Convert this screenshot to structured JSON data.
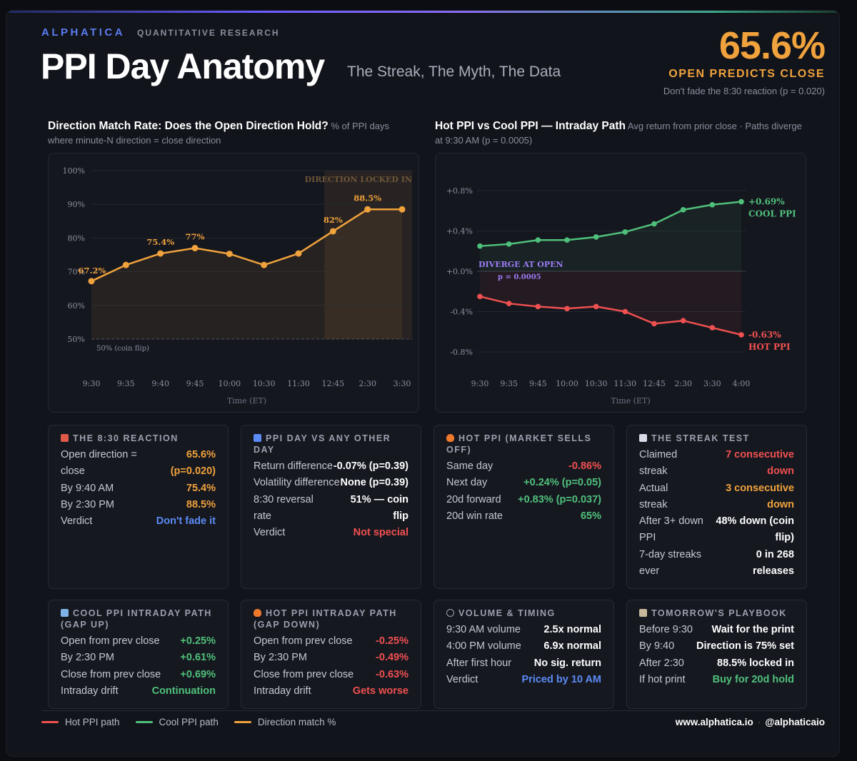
{
  "header": {
    "brand": "ALPHATICA",
    "brand_sub": "QUANTITATIVE RESEARCH",
    "title": "PPI Day Anatomy",
    "subtitle": "The Streak, The Myth, The Data",
    "big_stat": "65.6%",
    "big_label": "OPEN PREDICTS CLOSE",
    "big_note": "Don't fade the 8:30 reaction (p = 0.020)"
  },
  "chart_data": [
    {
      "type": "line",
      "title": "Direction Match Rate: Does the Open Direction Hold?",
      "subtitle": "% of PPI days where minute-N direction = close direction",
      "xlabel": "Time (ET)",
      "ylabel": "",
      "categories": [
        "9:30",
        "9:35",
        "9:40",
        "9:45",
        "10:00",
        "10:30",
        "11:30",
        "12:45",
        "2:30",
        "3:30"
      ],
      "series": [
        {
          "name": "Direction match %",
          "values": [
            67.2,
            72.0,
            75.4,
            77.0,
            75.3,
            72.0,
            75.4,
            82.0,
            88.5,
            88.5
          ]
        }
      ],
      "data_labels": [
        {
          "index": 0,
          "text": "67.2%"
        },
        {
          "index": 2,
          "text": "75.4%"
        },
        {
          "index": 3,
          "text": "77%"
        },
        {
          "index": 7,
          "text": "82%"
        },
        {
          "index": 8,
          "text": "88.5%"
        }
      ],
      "ylim": [
        50,
        100
      ],
      "yticks": [
        50,
        60,
        70,
        80,
        90,
        100
      ],
      "ytick_labels": [
        "50%",
        "60%",
        "70%",
        "80%",
        "90%",
        "100%"
      ],
      "reference_line": {
        "value": 50,
        "label": "50% (coin flip)"
      },
      "highlight_region": {
        "from_index": 7,
        "to_index": 9,
        "label": "DIRECTION LOCKED IN"
      },
      "color": "#f0a23c",
      "grid": true
    },
    {
      "type": "line",
      "title": "Hot PPI vs Cool PPI — Intraday Path",
      "subtitle": "Avg return from prior close · Paths diverge at 9:30 AM (p = 0.0005)",
      "xlabel": "Time (ET)",
      "ylabel": "",
      "categories": [
        "9:30",
        "9:35",
        "9:45",
        "10:00",
        "10:30",
        "11:30",
        "12:45",
        "2:30",
        "3:30",
        "4:00"
      ],
      "series": [
        {
          "name": "Cool PPI",
          "color": "#4fc07a",
          "values": [
            0.25,
            0.27,
            0.31,
            0.31,
            0.34,
            0.39,
            0.47,
            0.61,
            0.66,
            0.69
          ],
          "end_label": "+0.69%",
          "end_name": "COOL PPI"
        },
        {
          "name": "Hot PPI",
          "color": "#ef5050",
          "values": [
            -0.25,
            -0.32,
            -0.35,
            -0.37,
            -0.35,
            -0.4,
            -0.52,
            -0.49,
            -0.56,
            -0.63
          ],
          "end_label": "-0.63%",
          "end_name": "HOT PPI"
        }
      ],
      "ylim": [
        -0.9,
        0.9
      ],
      "yticks": [
        -0.8,
        -0.4,
        0.0,
        0.4,
        0.8
      ],
      "ytick_labels": [
        "-0.8%",
        "-0.4%",
        "+0.0%",
        "+0.4%",
        "+0.8%"
      ],
      "annotation": {
        "text": "DIVERGE AT OPEN",
        "sub": "p = 0.0005"
      },
      "grid": true
    }
  ],
  "cards": {
    "reaction": {
      "title": "THE 8:30 REACTION",
      "rows": [
        {
          "k": "Open direction = close",
          "v": "65.6% (p=0.020)",
          "cls": "orange"
        },
        {
          "k": "By 9:40 AM",
          "v": "75.4%",
          "cls": "orange"
        },
        {
          "k": "By 2:30 PM",
          "v": "88.5%",
          "cls": "orange"
        },
        {
          "k": "Verdict",
          "v": "Don't fade it",
          "cls": "blue"
        }
      ]
    },
    "vs_other": {
      "title": "PPI DAY VS ANY OTHER DAY",
      "rows": [
        {
          "k": "Return difference",
          "v": "-0.07% (p=0.39)",
          "cls": "white"
        },
        {
          "k": "Volatility difference",
          "v": "None (p=0.39)",
          "cls": "white"
        },
        {
          "k": "8:30 reversal rate",
          "v": "51% — coin flip",
          "cls": "white"
        },
        {
          "k": "Verdict",
          "v": "Not special",
          "cls": "red"
        }
      ]
    },
    "hot": {
      "title": "HOT PPI (MARKET SELLS OFF)",
      "rows": [
        {
          "k": "Same day",
          "v": "-0.86%",
          "cls": "red"
        },
        {
          "k": "Next day",
          "v": "+0.24% (p=0.05)",
          "cls": "green"
        },
        {
          "k": "20d forward",
          "v": "+0.83% (p=0.037)",
          "cls": "green"
        },
        {
          "k": "20d win rate",
          "v": "65%",
          "cls": "green"
        }
      ]
    },
    "streak": {
      "title": "THE STREAK TEST",
      "rows": [
        {
          "k": "Claimed streak",
          "v": "7 consecutive down",
          "cls": "red"
        },
        {
          "k": "Actual streak",
          "v": "3 consecutive down",
          "cls": "orange"
        },
        {
          "k": "After 3+ down PPI",
          "v": "48% down (coin flip)",
          "cls": "white"
        },
        {
          "k": "7-day streaks ever",
          "v": "0 in 268 releases",
          "cls": "white"
        }
      ]
    },
    "cool_path": {
      "title": "COOL PPI INTRADAY PATH (GAP UP)",
      "rows": [
        {
          "k": "Open from prev close",
          "v": "+0.25%",
          "cls": "green"
        },
        {
          "k": "By 2:30 PM",
          "v": "+0.61%",
          "cls": "green"
        },
        {
          "k": "Close from prev close",
          "v": "+0.69%",
          "cls": "green"
        },
        {
          "k": "Intraday drift",
          "v": "Continuation",
          "cls": "green"
        }
      ]
    },
    "hot_path": {
      "title": "HOT PPI INTRADAY PATH (GAP DOWN)",
      "rows": [
        {
          "k": "Open from prev close",
          "v": "-0.25%",
          "cls": "red"
        },
        {
          "k": "By 2:30 PM",
          "v": "-0.49%",
          "cls": "red"
        },
        {
          "k": "Close from prev close",
          "v": "-0.63%",
          "cls": "red"
        },
        {
          "k": "Intraday drift",
          "v": "Gets worse",
          "cls": "red"
        }
      ]
    },
    "volume": {
      "title": "VOLUME & TIMING",
      "rows": [
        {
          "k": "9:30 AM volume",
          "v": "2.5x normal",
          "cls": "white"
        },
        {
          "k": "4:00 PM volume",
          "v": "6.9x normal",
          "cls": "white"
        },
        {
          "k": "After first hour",
          "v": "No sig. return",
          "cls": "white"
        },
        {
          "k": "Verdict",
          "v": "Priced by 10 AM",
          "cls": "blue"
        }
      ]
    },
    "playbook": {
      "title": "TOMORROW'S PLAYBOOK",
      "rows": [
        {
          "k": "Before 9:30",
          "v": "Wait for the print",
          "cls": "white"
        },
        {
          "k": "By 9:40",
          "v": "Direction is 75% set",
          "cls": "white"
        },
        {
          "k": "After 2:30",
          "v": "88.5% locked in",
          "cls": "white"
        },
        {
          "k": "If hot print",
          "v": "Buy for 20d hold",
          "cls": "green"
        }
      ]
    }
  },
  "legend": [
    {
      "label": "Hot PPI path",
      "color": "#ef5050"
    },
    {
      "label": "Cool PPI path",
      "color": "#4fc07a"
    },
    {
      "label": "Direction match %",
      "color": "#f0a23c"
    }
  ],
  "footer": {
    "site": "www.alphatica.io",
    "handle": "@alphaticaio"
  }
}
